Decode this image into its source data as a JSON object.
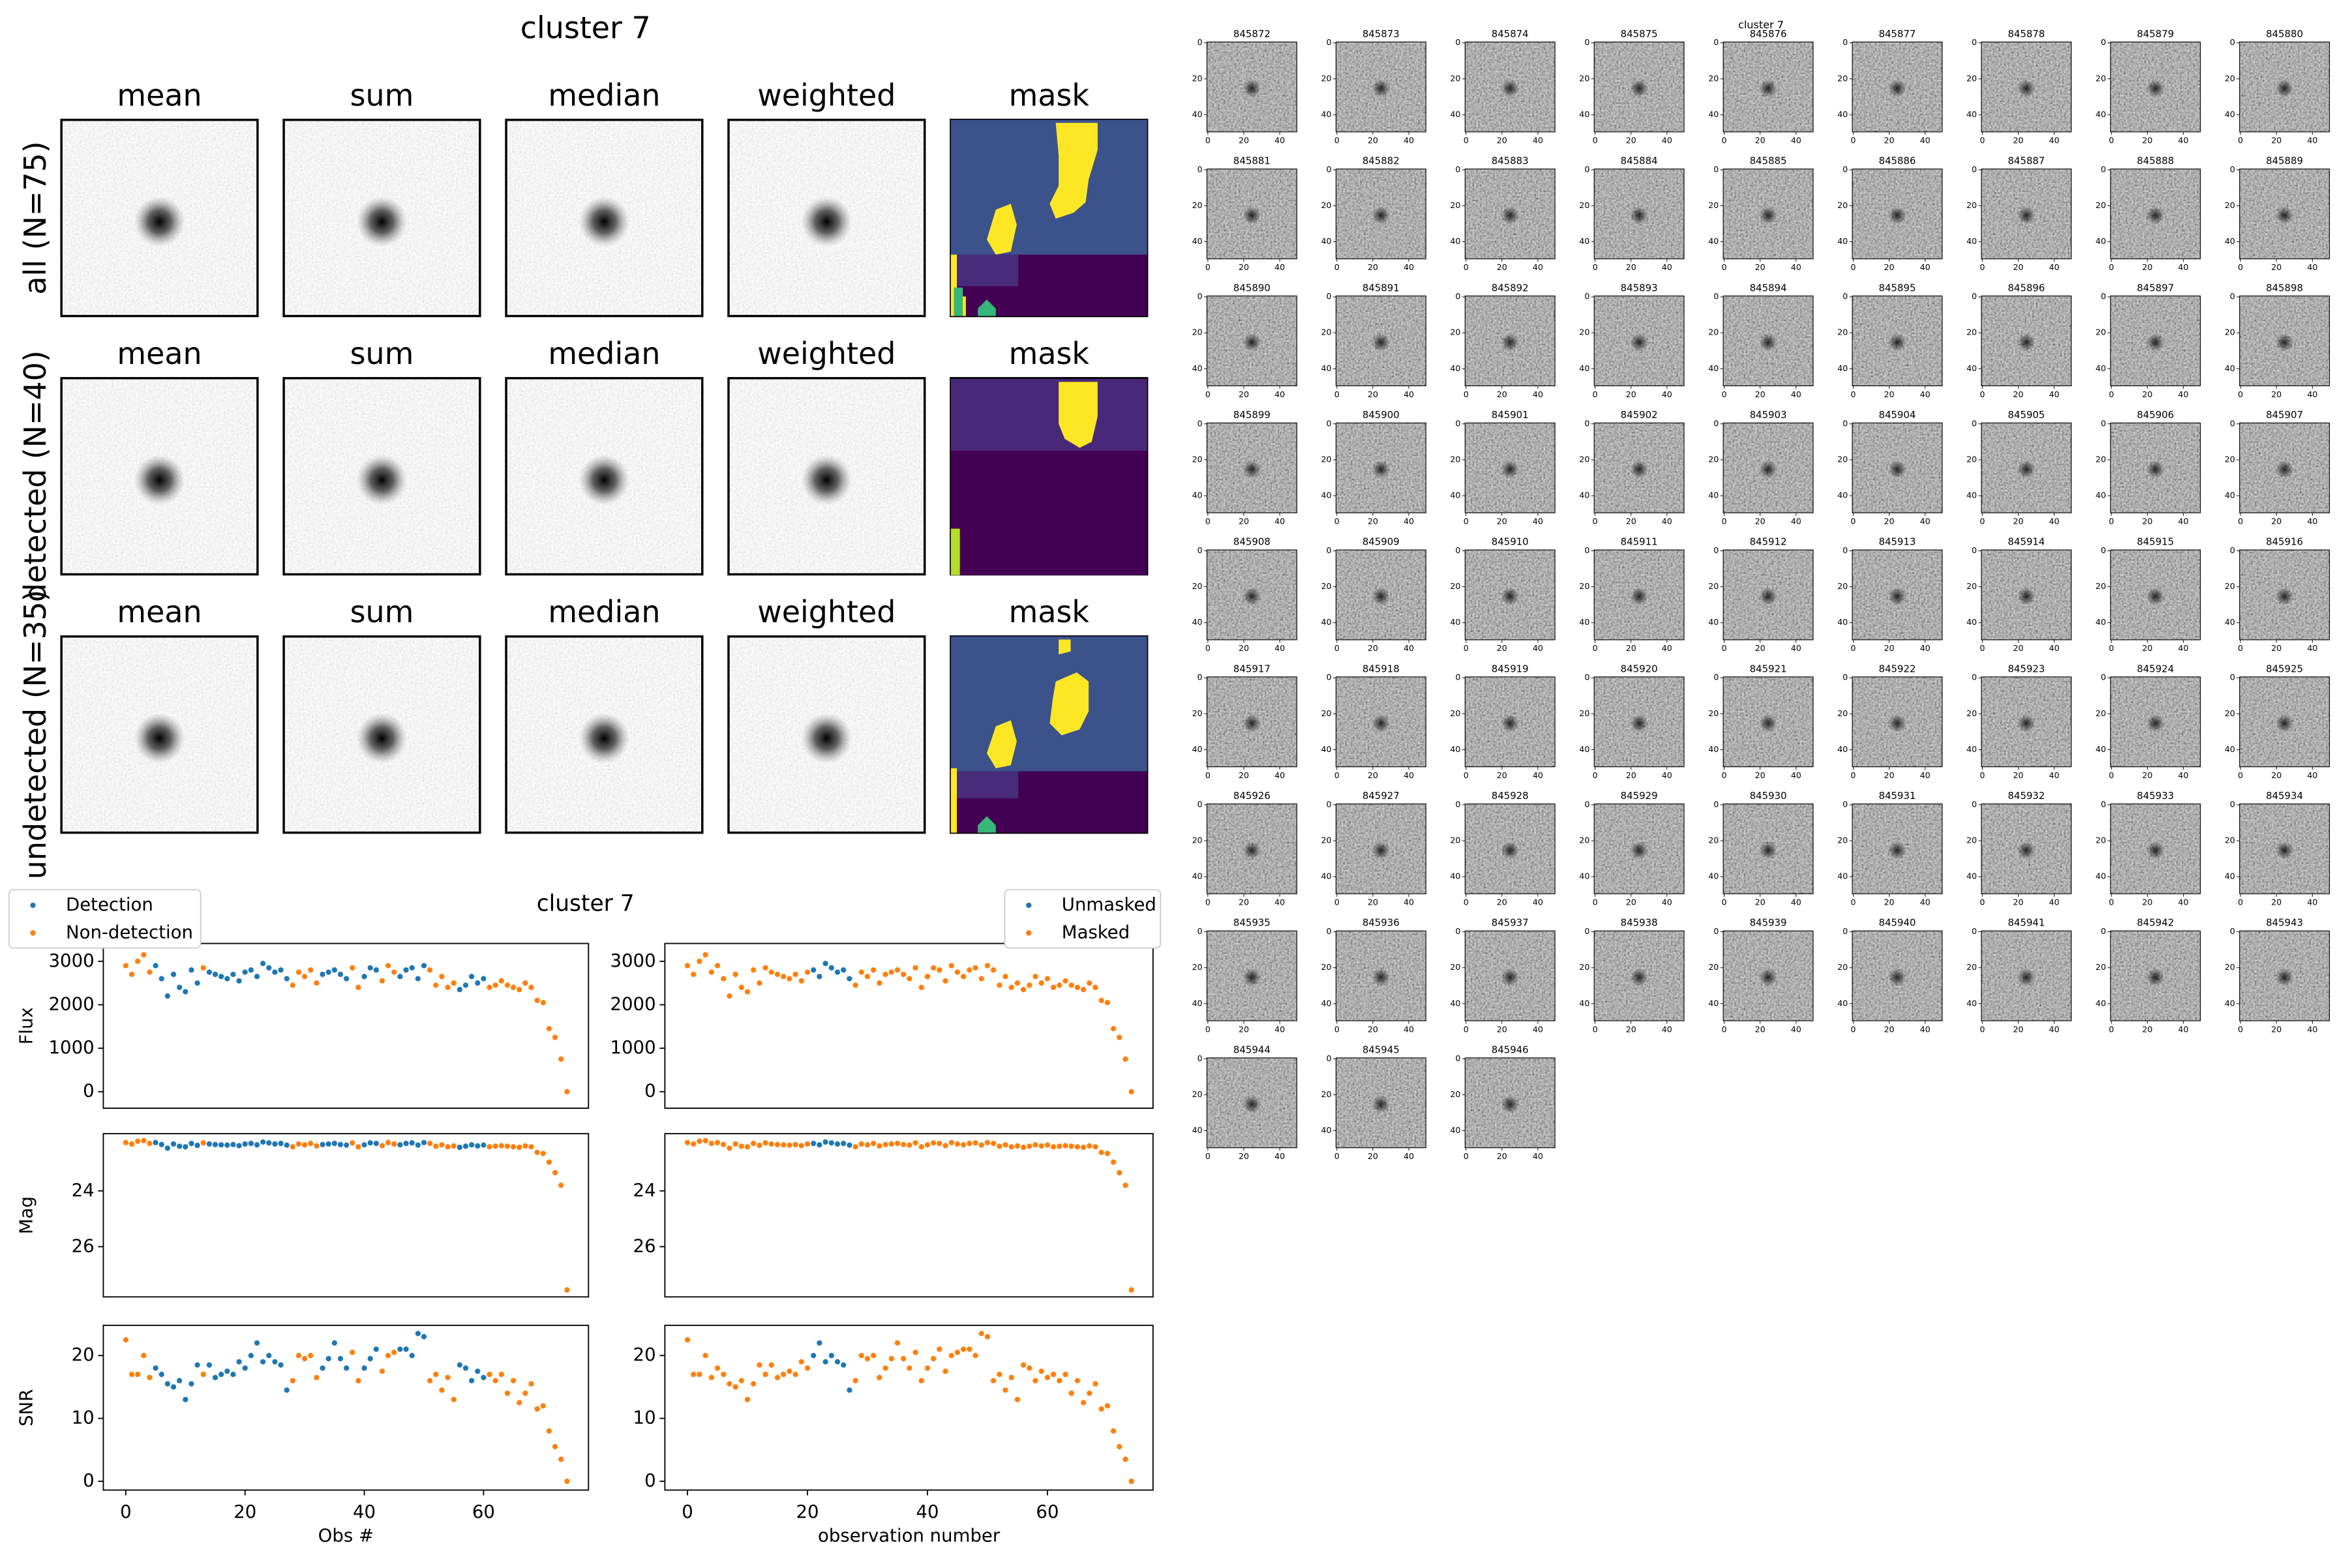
{
  "stack_figure": {
    "title": "cluster 7",
    "column_titles": [
      "mean",
      "sum",
      "median",
      "weighted",
      "mask"
    ],
    "row_labels": [
      "all (N=75)",
      "detected (N=40)",
      "undetected (N=35)"
    ]
  },
  "plots_title": "cluster 7",
  "chart_data": [
    {
      "type": "scatter",
      "ylabel": "Flux",
      "xlim": [
        -3.77,
        77.6
      ],
      "ylim": [
        -380,
        3410
      ],
      "yticks": [
        0,
        1000,
        2000,
        3000
      ],
      "legend": "upper left",
      "series": [
        {
          "name": "Detection",
          "color": "#1f77b4",
          "x": [
            5,
            6,
            7,
            8,
            9,
            10,
            11,
            12,
            14,
            15,
            16,
            17,
            18,
            19,
            20,
            21,
            22,
            23,
            24,
            25,
            26,
            27,
            33,
            34,
            35,
            36,
            37,
            40,
            41,
            42,
            46,
            47,
            48,
            49,
            50,
            56,
            57,
            58,
            59,
            60
          ],
          "values": [
            2900,
            2600,
            2200,
            2700,
            2400,
            2300,
            2800,
            2500,
            2750,
            2700,
            2650,
            2600,
            2700,
            2550,
            2750,
            2800,
            2650,
            2950,
            2850,
            2750,
            2800,
            2600,
            2700,
            2750,
            2800,
            2700,
            2600,
            2650,
            2850,
            2800,
            2650,
            2800,
            2850,
            2600,
            2900,
            2350,
            2450,
            2650,
            2500,
            2600
          ]
        },
        {
          "name": "Non-detection",
          "color": "#ff7f0e",
          "x": [
            0,
            1,
            2,
            3,
            4,
            13,
            28,
            29,
            30,
            31,
            32,
            38,
            39,
            43,
            44,
            45,
            51,
            52,
            53,
            54,
            55,
            61,
            62,
            63,
            64,
            65,
            66,
            67,
            68,
            69,
            70,
            71,
            72,
            73,
            74
          ],
          "values": [
            2900,
            2700,
            3000,
            3150,
            2750,
            2850,
            2450,
            2750,
            2650,
            2800,
            2500,
            2850,
            2400,
            2550,
            2900,
            2750,
            2800,
            2450,
            2650,
            2400,
            2500,
            2400,
            2450,
            2550,
            2450,
            2400,
            2350,
            2500,
            2400,
            2100,
            2050,
            1450,
            1250,
            750,
            0
          ]
        }
      ]
    },
    {
      "type": "scatter",
      "xlim": [
        -3.77,
        77.6
      ],
      "ylim": [
        -380,
        3410
      ],
      "yticks": [
        0,
        1000,
        2000,
        3000
      ],
      "legend": "upper right",
      "series": [
        {
          "name": "Unmasked",
          "color": "#1f77b4",
          "x": [
            21,
            22,
            23,
            24,
            25,
            26,
            27
          ],
          "values": [
            2800,
            2650,
            2950,
            2850,
            2750,
            2800,
            2600
          ]
        },
        {
          "name": "Masked",
          "color": "#ff7f0e",
          "x": [
            0,
            1,
            2,
            3,
            4,
            5,
            6,
            7,
            8,
            9,
            10,
            11,
            12,
            13,
            14,
            15,
            16,
            17,
            18,
            19,
            20,
            28,
            29,
            30,
            31,
            32,
            33,
            34,
            35,
            36,
            37,
            38,
            39,
            40,
            41,
            42,
            43,
            44,
            45,
            46,
            47,
            48,
            49,
            50,
            51,
            52,
            53,
            54,
            55,
            56,
            57,
            58,
            59,
            60,
            61,
            62,
            63,
            64,
            65,
            66,
            67,
            68,
            69,
            70,
            71,
            72,
            73,
            74
          ],
          "values": [
            2900,
            2700,
            3000,
            3150,
            2750,
            2900,
            2600,
            2200,
            2700,
            2400,
            2300,
            2800,
            2500,
            2850,
            2750,
            2700,
            2650,
            2600,
            2700,
            2550,
            2750,
            2450,
            2750,
            2650,
            2800,
            2500,
            2700,
            2750,
            2800,
            2700,
            2600,
            2850,
            2400,
            2650,
            2850,
            2800,
            2550,
            2900,
            2750,
            2650,
            2800,
            2850,
            2600,
            2900,
            2800,
            2450,
            2650,
            2400,
            2500,
            2350,
            2450,
            2650,
            2500,
            2600,
            2400,
            2450,
            2550,
            2450,
            2400,
            2350,
            2500,
            2400,
            2100,
            2050,
            1450,
            1250,
            750,
            0
          ]
        }
      ]
    },
    {
      "type": "scatter",
      "ylabel": "Mag",
      "xlim": [
        -3.77,
        77.6
      ],
      "ylim": [
        27.8,
        21.95
      ],
      "yticks": [
        24,
        26
      ],
      "series": [
        {
          "color": "#1f77b4",
          "x": [
            5,
            6,
            7,
            8,
            9,
            10,
            11,
            12,
            14,
            15,
            16,
            17,
            18,
            19,
            20,
            21,
            22,
            23,
            24,
            25,
            26,
            27,
            33,
            34,
            35,
            36,
            37,
            40,
            41,
            42,
            46,
            47,
            48,
            49,
            50,
            56,
            57,
            58,
            59,
            60
          ],
          "values": [
            22.27,
            22.34,
            22.47,
            22.32,
            22.4,
            22.42,
            22.3,
            22.37,
            22.32,
            22.34,
            22.35,
            22.36,
            22.34,
            22.38,
            22.32,
            22.3,
            22.35,
            22.25,
            22.28,
            22.32,
            22.3,
            22.36,
            22.34,
            22.32,
            22.3,
            22.34,
            22.36,
            22.35,
            22.28,
            22.3,
            22.35,
            22.3,
            22.28,
            22.36,
            22.27,
            22.44,
            22.4,
            22.35,
            22.39,
            22.36
          ]
        },
        {
          "color": "#ff7f0e",
          "x": [
            0,
            1,
            2,
            3,
            4,
            13,
            28,
            29,
            30,
            31,
            32,
            38,
            39,
            43,
            44,
            45,
            51,
            52,
            53,
            54,
            55,
            61,
            62,
            63,
            64,
            65,
            66,
            67,
            68,
            69,
            70,
            71,
            72,
            73,
            74
          ],
          "values": [
            22.27,
            22.32,
            22.22,
            22.2,
            22.3,
            22.28,
            22.42,
            22.32,
            22.35,
            22.3,
            22.39,
            22.28,
            22.42,
            22.38,
            22.27,
            22.32,
            22.3,
            22.4,
            22.35,
            22.42,
            22.39,
            22.42,
            22.4,
            22.38,
            22.4,
            22.42,
            22.44,
            22.39,
            22.42,
            22.62,
            22.66,
            22.97,
            23.35,
            23.8,
            27.55
          ]
        }
      ]
    },
    {
      "type": "scatter",
      "xlim": [
        -3.77,
        77.6
      ],
      "ylim": [
        27.8,
        21.95
      ],
      "yticks": [
        24,
        26
      ],
      "series": [
        {
          "color": "#1f77b4",
          "x": [
            21,
            22,
            23,
            24,
            25,
            26,
            27
          ],
          "values": [
            22.3,
            22.35,
            22.25,
            22.28,
            22.32,
            22.3,
            22.36
          ]
        },
        {
          "color": "#ff7f0e",
          "x": [
            0,
            1,
            2,
            3,
            4,
            5,
            6,
            7,
            8,
            9,
            10,
            11,
            12,
            13,
            14,
            15,
            16,
            17,
            18,
            19,
            20,
            28,
            29,
            30,
            31,
            32,
            33,
            34,
            35,
            36,
            37,
            38,
            39,
            40,
            41,
            42,
            43,
            44,
            45,
            46,
            47,
            48,
            49,
            50,
            51,
            52,
            53,
            54,
            55,
            56,
            57,
            58,
            59,
            60,
            61,
            62,
            63,
            64,
            65,
            66,
            67,
            68,
            69,
            70,
            71,
            72,
            73,
            74
          ],
          "values": [
            22.27,
            22.32,
            22.22,
            22.2,
            22.3,
            22.27,
            22.34,
            22.47,
            22.32,
            22.4,
            22.42,
            22.3,
            22.37,
            22.28,
            22.32,
            22.34,
            22.35,
            22.36,
            22.34,
            22.38,
            22.32,
            22.42,
            22.32,
            22.35,
            22.3,
            22.39,
            22.34,
            22.32,
            22.3,
            22.34,
            22.36,
            22.28,
            22.42,
            22.35,
            22.28,
            22.3,
            22.38,
            22.27,
            22.32,
            22.35,
            22.3,
            22.28,
            22.36,
            22.27,
            22.3,
            22.4,
            22.35,
            22.42,
            22.39,
            22.44,
            22.4,
            22.35,
            22.39,
            22.36,
            22.42,
            22.4,
            22.38,
            22.4,
            22.42,
            22.44,
            22.39,
            22.42,
            22.62,
            22.66,
            22.97,
            23.35,
            23.8,
            27.55
          ]
        }
      ]
    },
    {
      "type": "scatter",
      "ylabel": "SNR",
      "xlabel": "Obs #",
      "xlim": [
        -3.77,
        77.6
      ],
      "ylim": [
        -1.4,
        24.8
      ],
      "yticks": [
        0,
        10,
        20
      ],
      "xticks": [
        0,
        20,
        40,
        60
      ],
      "series": [
        {
          "color": "#1f77b4",
          "x": [
            5,
            6,
            7,
            8,
            9,
            10,
            11,
            12,
            14,
            15,
            16,
            17,
            18,
            19,
            20,
            21,
            22,
            23,
            24,
            25,
            26,
            27,
            33,
            34,
            35,
            36,
            37,
            40,
            41,
            42,
            46,
            47,
            48,
            49,
            50,
            56,
            57,
            58,
            59,
            60
          ],
          "values": [
            18,
            17,
            15.5,
            15,
            16,
            13,
            15.5,
            18.5,
            18.5,
            16.5,
            17,
            17.5,
            17,
            19,
            18,
            20,
            22,
            19,
            20,
            19,
            18.5,
            14.5,
            18,
            19.5,
            22,
            19.5,
            18,
            18,
            19.5,
            21,
            21,
            21,
            20,
            23.5,
            23,
            18.5,
            18,
            16,
            17.5,
            16.5
          ]
        },
        {
          "color": "#ff7f0e",
          "x": [
            0,
            1,
            2,
            3,
            4,
            13,
            28,
            29,
            30,
            31,
            32,
            38,
            39,
            43,
            44,
            45,
            51,
            52,
            53,
            54,
            55,
            61,
            62,
            63,
            64,
            65,
            66,
            67,
            68,
            69,
            70,
            71,
            72,
            73,
            74
          ],
          "values": [
            22.5,
            17,
            17,
            20,
            16.5,
            17,
            16,
            20,
            19.5,
            20,
            16.5,
            20.5,
            16,
            17.5,
            20,
            20.5,
            16,
            17,
            14.5,
            16.5,
            13,
            17,
            16,
            17,
            14,
            16,
            12.5,
            14,
            15.5,
            11.5,
            12,
            8,
            5.5,
            3.5,
            0
          ]
        }
      ]
    },
    {
      "type": "scatter",
      "xlabel": "observation number",
      "xlim": [
        -3.77,
        77.6
      ],
      "ylim": [
        -1.4,
        24.8
      ],
      "yticks": [
        0,
        10,
        20
      ],
      "xticks": [
        0,
        20,
        40,
        60
      ],
      "series": [
        {
          "color": "#1f77b4",
          "x": [
            21,
            22,
            23,
            24,
            25,
            26,
            27
          ],
          "values": [
            20,
            22,
            19,
            20,
            19,
            18.5,
            14.5
          ]
        },
        {
          "color": "#ff7f0e",
          "x": [
            0,
            1,
            2,
            3,
            4,
            5,
            6,
            7,
            8,
            9,
            10,
            11,
            12,
            13,
            14,
            15,
            16,
            17,
            18,
            19,
            20,
            28,
            29,
            30,
            31,
            32,
            33,
            34,
            35,
            36,
            37,
            38,
            39,
            40,
            41,
            42,
            43,
            44,
            45,
            46,
            47,
            48,
            49,
            50,
            51,
            52,
            53,
            54,
            55,
            56,
            57,
            58,
            59,
            60,
            61,
            62,
            63,
            64,
            65,
            66,
            67,
            68,
            69,
            70,
            71,
            72,
            73,
            74
          ],
          "values": [
            22.5,
            17,
            17,
            20,
            16.5,
            18,
            17,
            15.5,
            15,
            16,
            13,
            15.5,
            18.5,
            17,
            18.5,
            16.5,
            17,
            17.5,
            17,
            19,
            18,
            16,
            20,
            19.5,
            20,
            16.5,
            18,
            19.5,
            22,
            19.5,
            18,
            20.5,
            16,
            18,
            19.5,
            21,
            17.5,
            20,
            20.5,
            21,
            21,
            20,
            23.5,
            23,
            16,
            17,
            14.5,
            16.5,
            13,
            18.5,
            18,
            16,
            17.5,
            16.5,
            17,
            16,
            17,
            14,
            16,
            12.5,
            14,
            15.5,
            11.5,
            12,
            8,
            5.5,
            3.5,
            0
          ]
        }
      ]
    }
  ],
  "thumbnails": {
    "title": "cluster 7",
    "ticks": [
      0,
      20,
      40
    ],
    "labels": [
      "845872",
      "845873",
      "845874",
      "845875",
      "845876",
      "845877",
      "845878",
      "845879",
      "845880",
      "845881",
      "845882",
      "845883",
      "845884",
      "845885",
      "845886",
      "845887",
      "845888",
      "845889",
      "845890",
      "845891",
      "845892",
      "845893",
      "845894",
      "845895",
      "845896",
      "845897",
      "845898",
      "845899",
      "845900",
      "845901",
      "845902",
      "845903",
      "845904",
      "845905",
      "845906",
      "845907",
      "845908",
      "845909",
      "845910",
      "845911",
      "845912",
      "845913",
      "845914",
      "845915",
      "845916",
      "845917",
      "845918",
      "845919",
      "845920",
      "845921",
      "845922",
      "845923",
      "845924",
      "845925",
      "845926",
      "845927",
      "845928",
      "845929",
      "845930",
      "845931",
      "845932",
      "845933",
      "845934",
      "845935",
      "845936",
      "845937",
      "845938",
      "845939",
      "845940",
      "845941",
      "845942",
      "845943",
      "845944",
      "845945",
      "845946"
    ]
  }
}
